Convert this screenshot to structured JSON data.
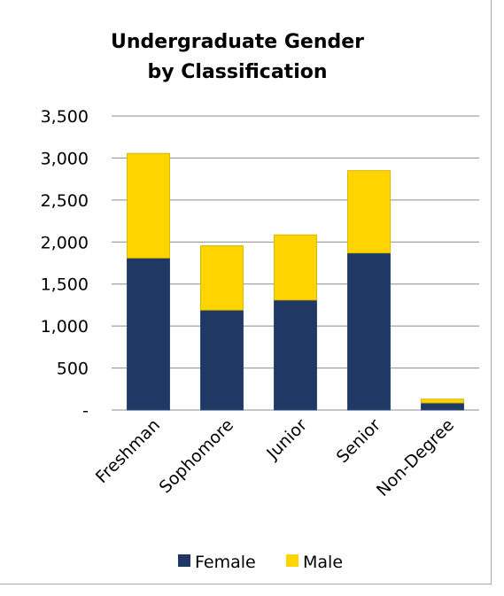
{
  "chart_data": {
    "type": "bar",
    "stacked": true,
    "title_lines": [
      "Undergraduate Gender",
      "by Classification"
    ],
    "categories": [
      "Freshman",
      "Sophomore",
      "Junior",
      "Senior",
      "Non-Degree"
    ],
    "series": [
      {
        "name": "Female",
        "values": [
          1810,
          1190,
          1310,
          1870,
          85
        ],
        "color": "#1f3864"
      },
      {
        "name": "Male",
        "values": [
          1245,
          765,
          775,
          980,
          45
        ],
        "color": "#ffd400"
      }
    ],
    "y_ticks": [
      0,
      500,
      1000,
      1500,
      2000,
      2500,
      3000,
      3500
    ],
    "y_tick_labels": [
      "-",
      "500",
      "1,000",
      "1,500",
      "2,000",
      "2,500",
      "3,000",
      "3,500"
    ],
    "ylim": [
      0,
      3500
    ],
    "grid": true,
    "legend_position": "bottom",
    "gridline_color": "#8c8c8c"
  }
}
